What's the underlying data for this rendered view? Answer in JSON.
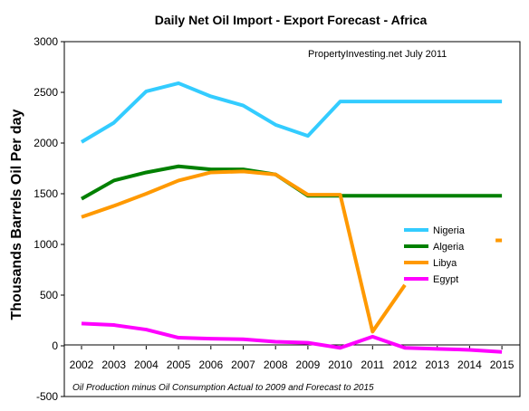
{
  "chart_data": {
    "type": "line",
    "title": "Daily Net Oil Import - Export Forecast - Africa",
    "subtitle": "PropertyInvesting.net  July 2011",
    "ylabel": "Thousands Barrels Oil Per day",
    "xlabel": "",
    "footnote": "Oil Production minus Oil Consumption Actual to 2009 and Forecast to 2015",
    "ylim": [
      -500,
      3000
    ],
    "yticks": [
      "3000",
      "2500",
      "2000",
      "1500",
      "1000",
      "500",
      "0",
      "-500"
    ],
    "ytick_values": [
      3000,
      2500,
      2000,
      1500,
      1000,
      500,
      0,
      -500
    ],
    "categories": [
      "2002",
      "2003",
      "2004",
      "2005",
      "2006",
      "2007",
      "2008",
      "2009",
      "2010",
      "2011",
      "2012",
      "2013",
      "2014",
      "2015"
    ],
    "grid": false,
    "legend_position": "right",
    "series": [
      {
        "name": "Nigeria",
        "color": "#33ccff",
        "values": [
          2010,
          2200,
          2510,
          2590,
          2460,
          2370,
          2180,
          2070,
          2410,
          2410,
          2410,
          2410,
          2410,
          2410
        ]
      },
      {
        "name": "Algeria",
        "color": "#008000",
        "values": [
          1450,
          1630,
          1710,
          1770,
          1740,
          1740,
          1690,
          1480,
          1480,
          1480,
          1480,
          1480,
          1480,
          1480
        ]
      },
      {
        "name": "Libya",
        "color": "#ff9900",
        "values": [
          1270,
          1380,
          1500,
          1630,
          1710,
          1720,
          1690,
          1490,
          1490,
          140,
          600,
          null,
          null,
          1040
        ]
      },
      {
        "name": "Egypt",
        "color": "#ff00ff",
        "values": [
          220,
          205,
          160,
          80,
          70,
          65,
          40,
          30,
          -20,
          90,
          -20,
          -30,
          -40,
          -60
        ]
      }
    ]
  }
}
